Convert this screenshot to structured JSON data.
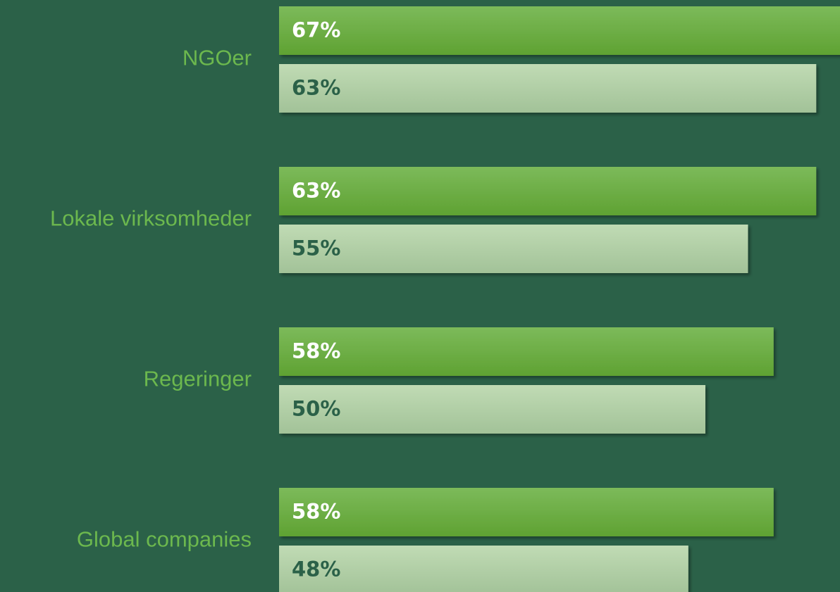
{
  "chart_data": {
    "type": "bar",
    "orientation": "horizontal",
    "categories": [
      "NGOer",
      "Lokale virksomheder",
      "Regeringer",
      "Global companies"
    ],
    "series": [
      {
        "color": "#6aad42",
        "values": [
          67,
          63,
          58,
          58
        ],
        "value_labels": [
          "67%",
          "63%",
          "58%",
          "58%"
        ]
      },
      {
        "color": "#b2d1a6",
        "values": [
          63,
          55,
          50,
          48
        ],
        "value_labels": [
          "63%",
          "55%",
          "50%",
          "48%"
        ]
      }
    ]
  }
}
